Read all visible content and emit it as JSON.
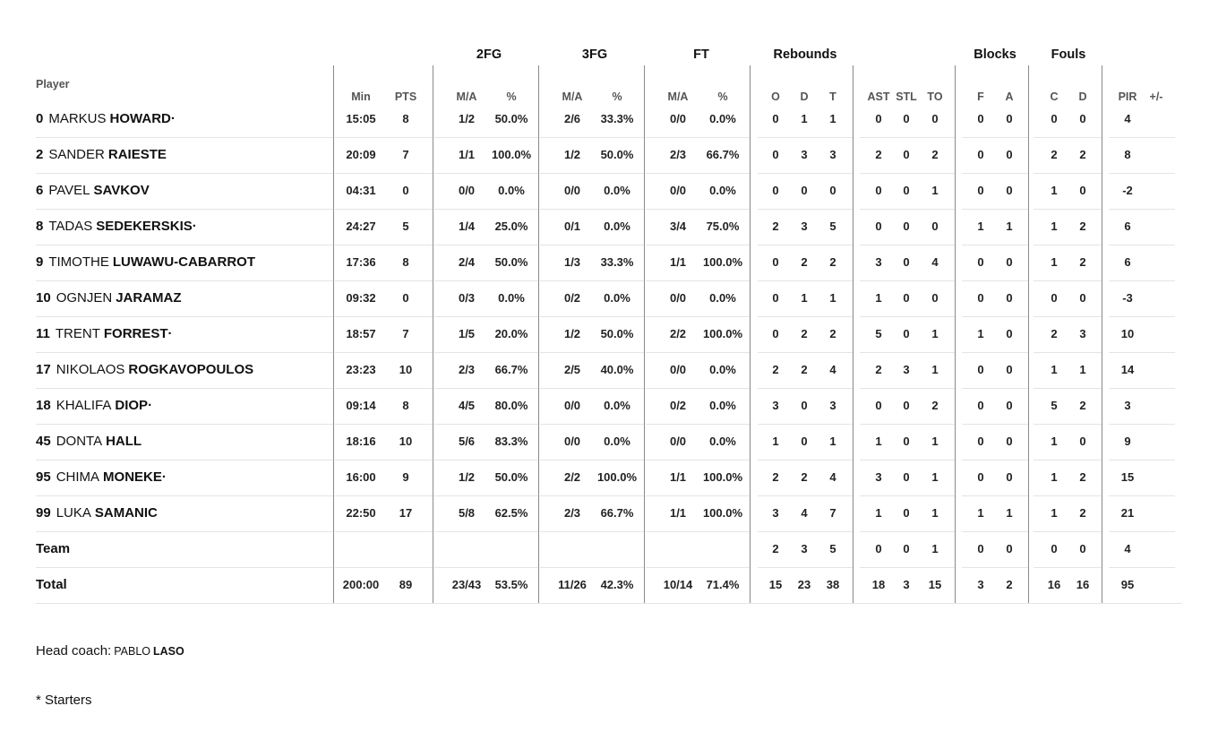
{
  "header": {
    "player": "Player",
    "groups": {
      "fg2": "2FG",
      "fg3": "3FG",
      "ft": "FT",
      "reb": "Rebounds",
      "blk": "Blocks",
      "fouls": "Fouls"
    },
    "cols": {
      "min": "Min",
      "pts": "PTS",
      "fg2_ma": "M/A",
      "fg2_pct": "%",
      "fg3_ma": "M/A",
      "fg3_pct": "%",
      "ft_ma": "M/A",
      "ft_pct": "%",
      "o": "O",
      "d": "D",
      "t": "T",
      "ast": "AST",
      "stl": "STL",
      "to": "TO",
      "f": "F",
      "a": "A",
      "c": "C",
      "fd": "D",
      "pir": "PIR",
      "pm": "+/-"
    }
  },
  "players": [
    {
      "num": "0",
      "first": "MARKUS",
      "last": "HOWARD·",
      "min": "15:05",
      "pts": "8",
      "fg2": "1/2",
      "fg2p": "50.0%",
      "fg3": "2/6",
      "fg3p": "33.3%",
      "ft": "0/0",
      "ftp": "0.0%",
      "o": "0",
      "d": "1",
      "t": "1",
      "ast": "0",
      "stl": "0",
      "to": "0",
      "f": "0",
      "a": "0",
      "c": "0",
      "fd": "0",
      "pir": "4",
      "pm": ""
    },
    {
      "num": "2",
      "first": "SANDER",
      "last": "RAIESTE",
      "min": "20:09",
      "pts": "7",
      "fg2": "1/1",
      "fg2p": "100.0%",
      "fg3": "1/2",
      "fg3p": "50.0%",
      "ft": "2/3",
      "ftp": "66.7%",
      "o": "0",
      "d": "3",
      "t": "3",
      "ast": "2",
      "stl": "0",
      "to": "2",
      "f": "0",
      "a": "0",
      "c": "2",
      "fd": "2",
      "pir": "8",
      "pm": ""
    },
    {
      "num": "6",
      "first": "PAVEL",
      "last": "SAVKOV",
      "min": "04:31",
      "pts": "0",
      "fg2": "0/0",
      "fg2p": "0.0%",
      "fg3": "0/0",
      "fg3p": "0.0%",
      "ft": "0/0",
      "ftp": "0.0%",
      "o": "0",
      "d": "0",
      "t": "0",
      "ast": "0",
      "stl": "0",
      "to": "1",
      "f": "0",
      "a": "0",
      "c": "1",
      "fd": "0",
      "pir": "-2",
      "pm": ""
    },
    {
      "num": "8",
      "first": "TADAS",
      "last": "SEDEKERSKIS·",
      "min": "24:27",
      "pts": "5",
      "fg2": "1/4",
      "fg2p": "25.0%",
      "fg3": "0/1",
      "fg3p": "0.0%",
      "ft": "3/4",
      "ftp": "75.0%",
      "o": "2",
      "d": "3",
      "t": "5",
      "ast": "0",
      "stl": "0",
      "to": "0",
      "f": "1",
      "a": "1",
      "c": "1",
      "fd": "2",
      "pir": "6",
      "pm": ""
    },
    {
      "num": "9",
      "first": "TIMOTHE",
      "last": "LUWAWU-CABARROT",
      "min": "17:36",
      "pts": "8",
      "fg2": "2/4",
      "fg2p": "50.0%",
      "fg3": "1/3",
      "fg3p": "33.3%",
      "ft": "1/1",
      "ftp": "100.0%",
      "o": "0",
      "d": "2",
      "t": "2",
      "ast": "3",
      "stl": "0",
      "to": "4",
      "f": "0",
      "a": "0",
      "c": "1",
      "fd": "2",
      "pir": "6",
      "pm": ""
    },
    {
      "num": "10",
      "first": "OGNJEN",
      "last": "JARAMAZ",
      "min": "09:32",
      "pts": "0",
      "fg2": "0/3",
      "fg2p": "0.0%",
      "fg3": "0/2",
      "fg3p": "0.0%",
      "ft": "0/0",
      "ftp": "0.0%",
      "o": "0",
      "d": "1",
      "t": "1",
      "ast": "1",
      "stl": "0",
      "to": "0",
      "f": "0",
      "a": "0",
      "c": "0",
      "fd": "0",
      "pir": "-3",
      "pm": ""
    },
    {
      "num": "11",
      "first": "TRENT",
      "last": "FORREST·",
      "min": "18:57",
      "pts": "7",
      "fg2": "1/5",
      "fg2p": "20.0%",
      "fg3": "1/2",
      "fg3p": "50.0%",
      "ft": "2/2",
      "ftp": "100.0%",
      "o": "0",
      "d": "2",
      "t": "2",
      "ast": "5",
      "stl": "0",
      "to": "1",
      "f": "1",
      "a": "0",
      "c": "2",
      "fd": "3",
      "pir": "10",
      "pm": ""
    },
    {
      "num": "17",
      "first": "NIKOLAOS",
      "last": "ROGKAVOPOULOS",
      "min": "23:23",
      "pts": "10",
      "fg2": "2/3",
      "fg2p": "66.7%",
      "fg3": "2/5",
      "fg3p": "40.0%",
      "ft": "0/0",
      "ftp": "0.0%",
      "o": "2",
      "d": "2",
      "t": "4",
      "ast": "2",
      "stl": "3",
      "to": "1",
      "f": "0",
      "a": "0",
      "c": "1",
      "fd": "1",
      "pir": "14",
      "pm": ""
    },
    {
      "num": "18",
      "first": "KHALIFA",
      "last": "DIOP·",
      "min": "09:14",
      "pts": "8",
      "fg2": "4/5",
      "fg2p": "80.0%",
      "fg3": "0/0",
      "fg3p": "0.0%",
      "ft": "0/2",
      "ftp": "0.0%",
      "o": "3",
      "d": "0",
      "t": "3",
      "ast": "0",
      "stl": "0",
      "to": "2",
      "f": "0",
      "a": "0",
      "c": "5",
      "fd": "2",
      "pir": "3",
      "pm": ""
    },
    {
      "num": "45",
      "first": "DONTA",
      "last": "HALL",
      "min": "18:16",
      "pts": "10",
      "fg2": "5/6",
      "fg2p": "83.3%",
      "fg3": "0/0",
      "fg3p": "0.0%",
      "ft": "0/0",
      "ftp": "0.0%",
      "o": "1",
      "d": "0",
      "t": "1",
      "ast": "1",
      "stl": "0",
      "to": "1",
      "f": "0",
      "a": "0",
      "c": "1",
      "fd": "0",
      "pir": "9",
      "pm": ""
    },
    {
      "num": "95",
      "first": "CHIMA",
      "last": "MONEKE·",
      "min": "16:00",
      "pts": "9",
      "fg2": "1/2",
      "fg2p": "50.0%",
      "fg3": "2/2",
      "fg3p": "100.0%",
      "ft": "1/1",
      "ftp": "100.0%",
      "o": "2",
      "d": "2",
      "t": "4",
      "ast": "3",
      "stl": "0",
      "to": "1",
      "f": "0",
      "a": "0",
      "c": "1",
      "fd": "2",
      "pir": "15",
      "pm": ""
    },
    {
      "num": "99",
      "first": "LUKA",
      "last": "SAMANIC",
      "min": "22:50",
      "pts": "17",
      "fg2": "5/8",
      "fg2p": "62.5%",
      "fg3": "2/3",
      "fg3p": "66.7%",
      "ft": "1/1",
      "ftp": "100.0%",
      "o": "3",
      "d": "4",
      "t": "7",
      "ast": "1",
      "stl": "0",
      "to": "1",
      "f": "1",
      "a": "1",
      "c": "1",
      "fd": "2",
      "pir": "21",
      "pm": ""
    }
  ],
  "team": {
    "label": "Team",
    "min": "",
    "pts": "",
    "fg2": "",
    "fg2p": "",
    "fg3": "",
    "fg3p": "",
    "ft": "",
    "ftp": "",
    "o": "2",
    "d": "3",
    "t": "5",
    "ast": "0",
    "stl": "0",
    "to": "1",
    "f": "0",
    "a": "0",
    "c": "0",
    "fd": "0",
    "pir": "4",
    "pm": ""
  },
  "total": {
    "label": "Total",
    "min": "200:00",
    "pts": "89",
    "fg2": "23/43",
    "fg2p": "53.5%",
    "fg3": "11/26",
    "fg3p": "42.3%",
    "ft": "10/14",
    "ftp": "71.4%",
    "o": "15",
    "d": "23",
    "t": "38",
    "ast": "18",
    "stl": "3",
    "to": "15",
    "f": "3",
    "a": "2",
    "c": "16",
    "fd": "16",
    "pir": "95",
    "pm": ""
  },
  "footer": {
    "coach_label": "Head coach:",
    "coach_first": "PABLO",
    "coach_last": "LASO",
    "starters_note": "* Starters"
  }
}
